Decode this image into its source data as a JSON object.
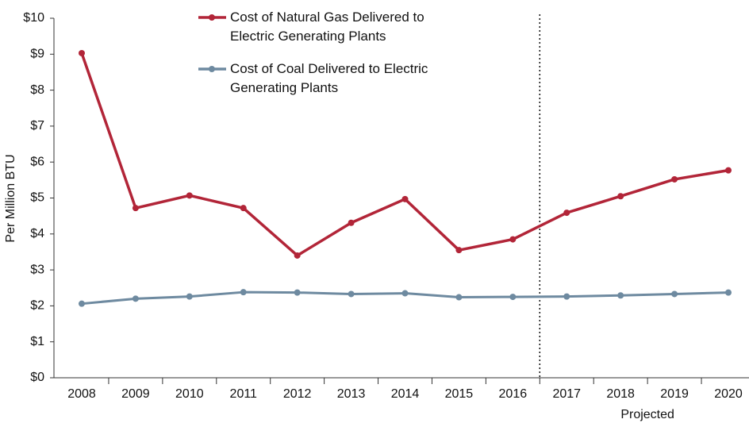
{
  "chart_data": {
    "type": "line",
    "y_label": "Per Million BTU",
    "annotation": "Projected",
    "categories": [
      "2008",
      "2009",
      "2010",
      "2011",
      "2012",
      "2013",
      "2014",
      "2015",
      "2016",
      "2017",
      "2018",
      "2019",
      "2020"
    ],
    "series": [
      {
        "name": "Cost of Natural Gas Delivered to Electric Generating Plants",
        "color": "#b22538",
        "values": [
          9.03,
          4.72,
          5.07,
          4.72,
          3.4,
          4.31,
          4.97,
          3.55,
          3.85,
          4.59,
          5.05,
          5.52,
          5.77
        ]
      },
      {
        "name": "Cost of Coal Delivered to Electric Generating Plants",
        "color": "#6e8aa0",
        "values": [
          2.06,
          2.2,
          2.26,
          2.38,
          2.37,
          2.33,
          2.35,
          2.24,
          2.25,
          2.26,
          2.29,
          2.33,
          2.37
        ]
      }
    ],
    "ylim": [
      0,
      10
    ],
    "yticks": [
      {
        "value": 0,
        "label": "$0"
      },
      {
        "value": 1,
        "label": "$1"
      },
      {
        "value": 2,
        "label": "$2"
      },
      {
        "value": 3,
        "label": "$3"
      },
      {
        "value": 4,
        "label": "$4"
      },
      {
        "value": 5,
        "label": "$5"
      },
      {
        "value": 6,
        "label": "$6"
      },
      {
        "value": 7,
        "label": "$7"
      },
      {
        "value": 8,
        "label": "$8"
      },
      {
        "value": 9,
        "label": "$9"
      },
      {
        "value": 10,
        "label": "$10"
      }
    ],
    "grid": false
  }
}
